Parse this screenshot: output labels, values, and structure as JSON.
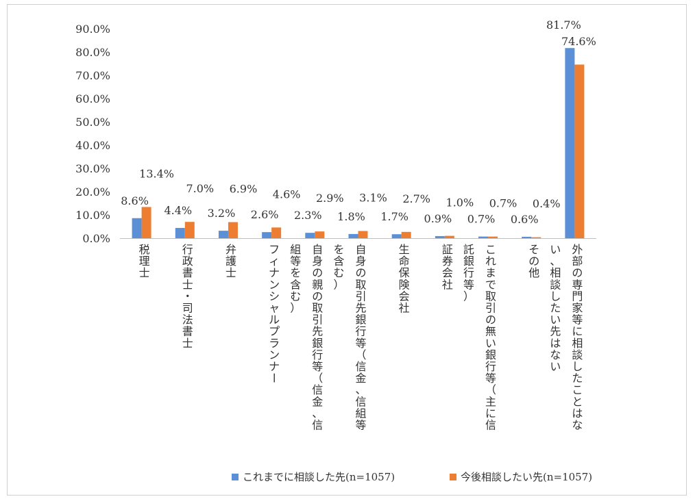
{
  "chart_data": {
    "type": "bar",
    "title": "",
    "xlabel": "",
    "ylabel": "",
    "ylim": [
      0,
      90
    ],
    "yticks": [
      "0.0%",
      "10.0%",
      "20.0%",
      "30.0%",
      "40.0%",
      "50.0%",
      "60.0%",
      "70.0%",
      "80.0%",
      "90.0%"
    ],
    "categories": [
      "税理士",
      "行政書士・司法書士",
      "弁護士",
      "フィナンシャルプランナー",
      "自身の親の取引先銀行等（信金、信組等を含む）",
      "自身の取引先銀行等（信金、信組等を含む）",
      "生命保険会社",
      "証券会社",
      "これまで取引の無い銀行等（主に信託銀行等）",
      "その他",
      "外部の専門家等に相談したことはない、相談したい先はない"
    ],
    "category_label_lines": [
      [
        "税理士"
      ],
      [
        "行政書士・司法書士"
      ],
      [
        "弁護士"
      ],
      [
        "フィナンシャルプランナー"
      ],
      [
        "自身の親の取引先銀行等（信金、信",
        "組等を含む）"
      ],
      [
        "自身の取引先銀行等（信金、信組等",
        "を含む）"
      ],
      [
        "生命保険会社"
      ],
      [
        "証券会社"
      ],
      [
        "これまで取引の無い銀行等（主に信",
        "託銀行等）"
      ],
      [
        "その他"
      ],
      [
        "外部の専門家等に相談したことはな",
        "い、相談したい先はない"
      ]
    ],
    "series": [
      {
        "name": "これまでに相談した先(n=1057)",
        "color": "#5b8fd6",
        "values": [
          8.6,
          4.4,
          3.2,
          2.6,
          2.3,
          1.8,
          1.7,
          0.9,
          0.7,
          0.6,
          81.7
        ],
        "labels": [
          "8.6%",
          "4.4%",
          "3.2%",
          "2.6%",
          "2.3%",
          "1.8%",
          "1.7%",
          "0.9%",
          "0.7%",
          "0.6%",
          "81.7%"
        ]
      },
      {
        "name": "今後相談したい先(n=1057)",
        "color": "#ed7d31",
        "values": [
          13.4,
          7.0,
          6.9,
          4.6,
          2.9,
          3.1,
          2.7,
          1.0,
          0.7,
          0.4,
          74.6
        ],
        "labels": [
          "13.4%",
          "7.0%",
          "6.9%",
          "4.6%",
          "2.9%",
          "3.1%",
          "2.7%",
          "1.0%",
          "0.7%",
          "0.4%",
          "74.6%"
        ]
      }
    ],
    "grid": false,
    "legend_position": "bottom"
  }
}
